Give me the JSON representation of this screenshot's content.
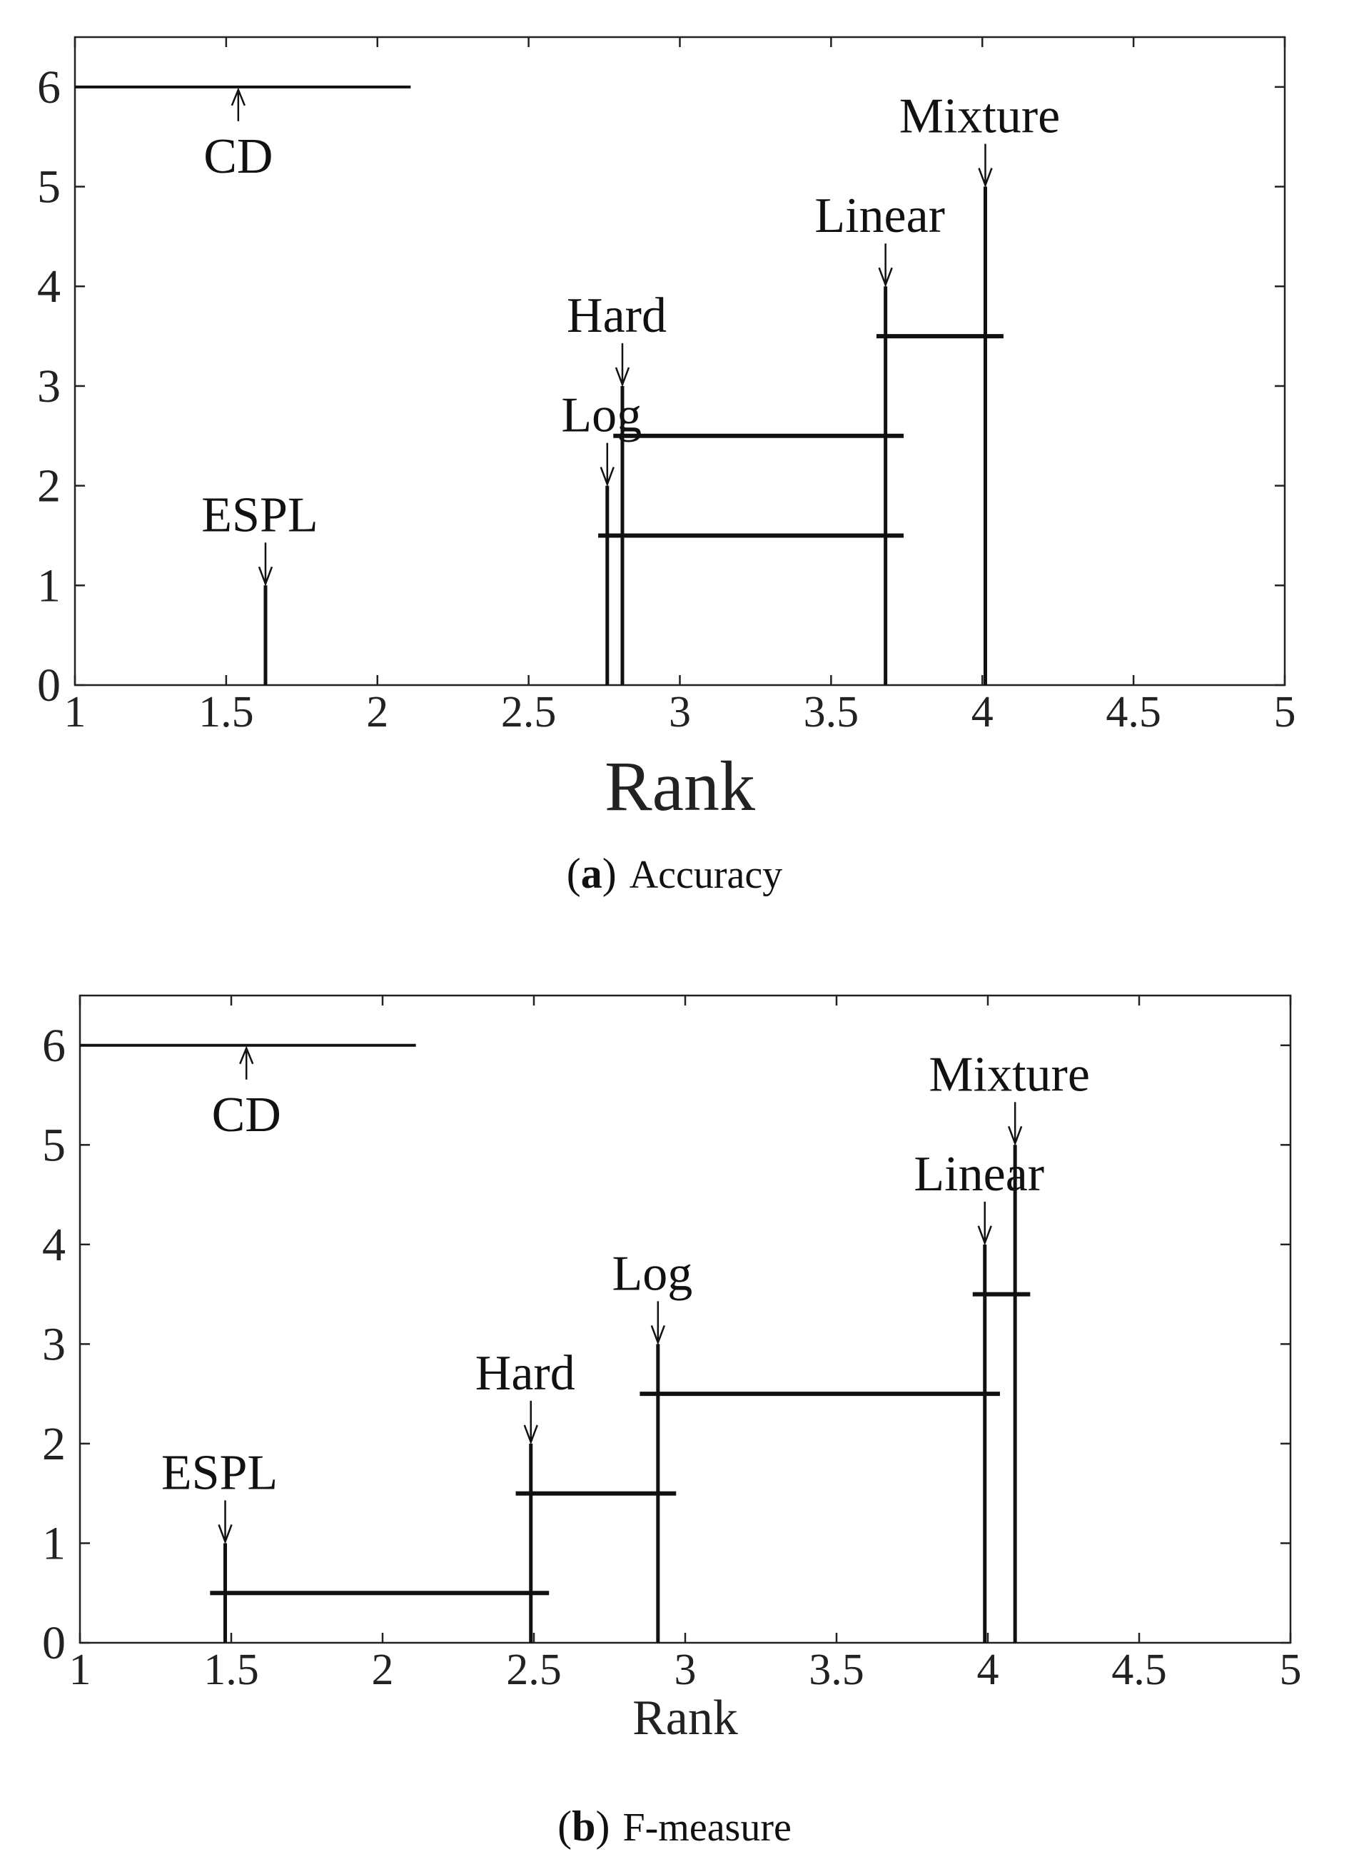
{
  "panels": [
    {
      "caption_letter": "a",
      "caption_text": "Accuracy"
    },
    {
      "caption_letter": "b",
      "caption_text": "F-measure"
    }
  ],
  "chart_data": [
    {
      "type": "critical-difference",
      "title": "",
      "xlabel": "Rank",
      "ylabel": "",
      "xlim": [
        1,
        5
      ],
      "ylim": [
        0,
        6.5
      ],
      "xticks": [
        1,
        1.5,
        2,
        2.5,
        3,
        3.5,
        4,
        4.5,
        5
      ],
      "xtick_labels": [
        "1",
        "1.5",
        "2",
        "2.5",
        "3",
        "3.5",
        "4",
        "4.5",
        "5"
      ],
      "yticks": [
        0,
        1,
        2,
        3,
        4,
        5,
        6
      ],
      "ytick_labels": [
        "0",
        "1",
        "2",
        "3",
        "4",
        "5",
        "6"
      ],
      "grid": false,
      "cd": {
        "label": "CD",
        "x_start": 1,
        "x_end": 2.11,
        "y": 6,
        "arrow_x": 1.54
      },
      "methods": [
        {
          "name": "ESPL",
          "rank": 1.63,
          "height": 1
        },
        {
          "name": "Log",
          "rank": 2.76,
          "height": 2
        },
        {
          "name": "Hard",
          "rank": 2.81,
          "height": 3
        },
        {
          "name": "Linear",
          "rank": 3.68,
          "height": 4
        },
        {
          "name": "Mixture",
          "rank": 4.01,
          "height": 5
        }
      ],
      "cliques": [
        {
          "x_start": 2.73,
          "x_end": 3.74,
          "y": 1.5
        },
        {
          "x_start": 2.78,
          "x_end": 3.74,
          "y": 2.5
        },
        {
          "x_start": 3.65,
          "x_end": 4.07,
          "y": 3.5
        }
      ]
    },
    {
      "type": "critical-difference",
      "title": "",
      "xlabel": "Rank",
      "ylabel": "",
      "xlim": [
        1,
        5
      ],
      "ylim": [
        0,
        6.5
      ],
      "xticks": [
        1,
        1.5,
        2,
        2.5,
        3,
        3.5,
        4,
        4.5,
        5
      ],
      "xtick_labels": [
        "1",
        "1.5",
        "2",
        "2.5",
        "3",
        "3.5",
        "4",
        "4.5",
        "5"
      ],
      "yticks": [
        0,
        1,
        2,
        3,
        4,
        5,
        6
      ],
      "ytick_labels": [
        "0",
        "1",
        "2",
        "3",
        "4",
        "5",
        "6"
      ],
      "grid": false,
      "cd": {
        "label": "CD",
        "x_start": 1,
        "x_end": 2.11,
        "y": 6,
        "arrow_x": 1.55
      },
      "methods": [
        {
          "name": "ESPL",
          "rank": 1.48,
          "height": 1
        },
        {
          "name": "Hard",
          "rank": 2.49,
          "height": 2
        },
        {
          "name": "Log",
          "rank": 2.91,
          "height": 3
        },
        {
          "name": "Linear",
          "rank": 3.99,
          "height": 4
        },
        {
          "name": "Mixture",
          "rank": 4.09,
          "height": 5
        }
      ],
      "cliques": [
        {
          "x_start": 1.43,
          "x_end": 2.55,
          "y": 0.5
        },
        {
          "x_start": 2.44,
          "x_end": 2.97,
          "y": 1.5
        },
        {
          "x_start": 2.85,
          "x_end": 4.04,
          "y": 2.5
        },
        {
          "x_start": 3.95,
          "x_end": 4.14,
          "y": 3.5
        }
      ]
    }
  ]
}
